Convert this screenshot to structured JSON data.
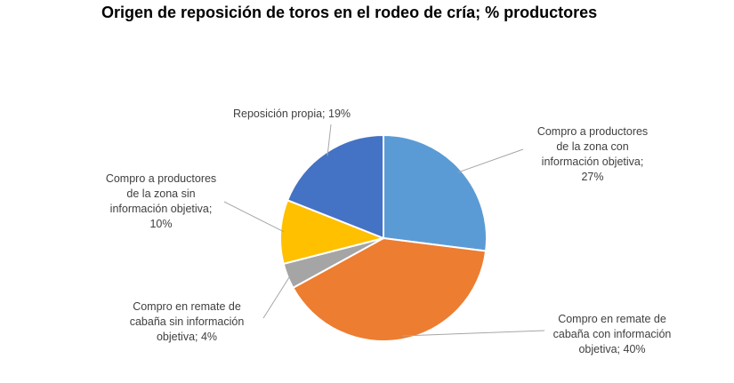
{
  "chart_data": {
    "type": "pie",
    "title": "Origen de reposición de toros en el rodeo de cría; % productores",
    "slices": [
      {
        "label": "Compro a productores de la zona con información objetiva",
        "value": 27,
        "display": "Compro a productores\nde la zona con\ninformación objetiva;\n27%",
        "color": "#5B9BD5"
      },
      {
        "label": "Compro en remate de cabaña con información objetiva",
        "value": 40,
        "display": "Compro en remate de\ncabaña con información\nobjetiva; 40%",
        "color": "#ED7D31"
      },
      {
        "label": "Compro en remate de cabaña sin información objetiva",
        "value": 4,
        "display": "Compro en remate de\ncabaña sin información\nobjetiva; 4%",
        "color": "#A5A5A5"
      },
      {
        "label": "Compro a productores de la zona sin información objetiva",
        "value": 10,
        "display": "Compro a productores\nde la zona sin\ninformación objetiva;\n10%",
        "color": "#FFC000"
      },
      {
        "label": "Reposición propia",
        "value": 19,
        "display": "Reposición propia; 19%",
        "color": "#4472C4"
      }
    ]
  }
}
